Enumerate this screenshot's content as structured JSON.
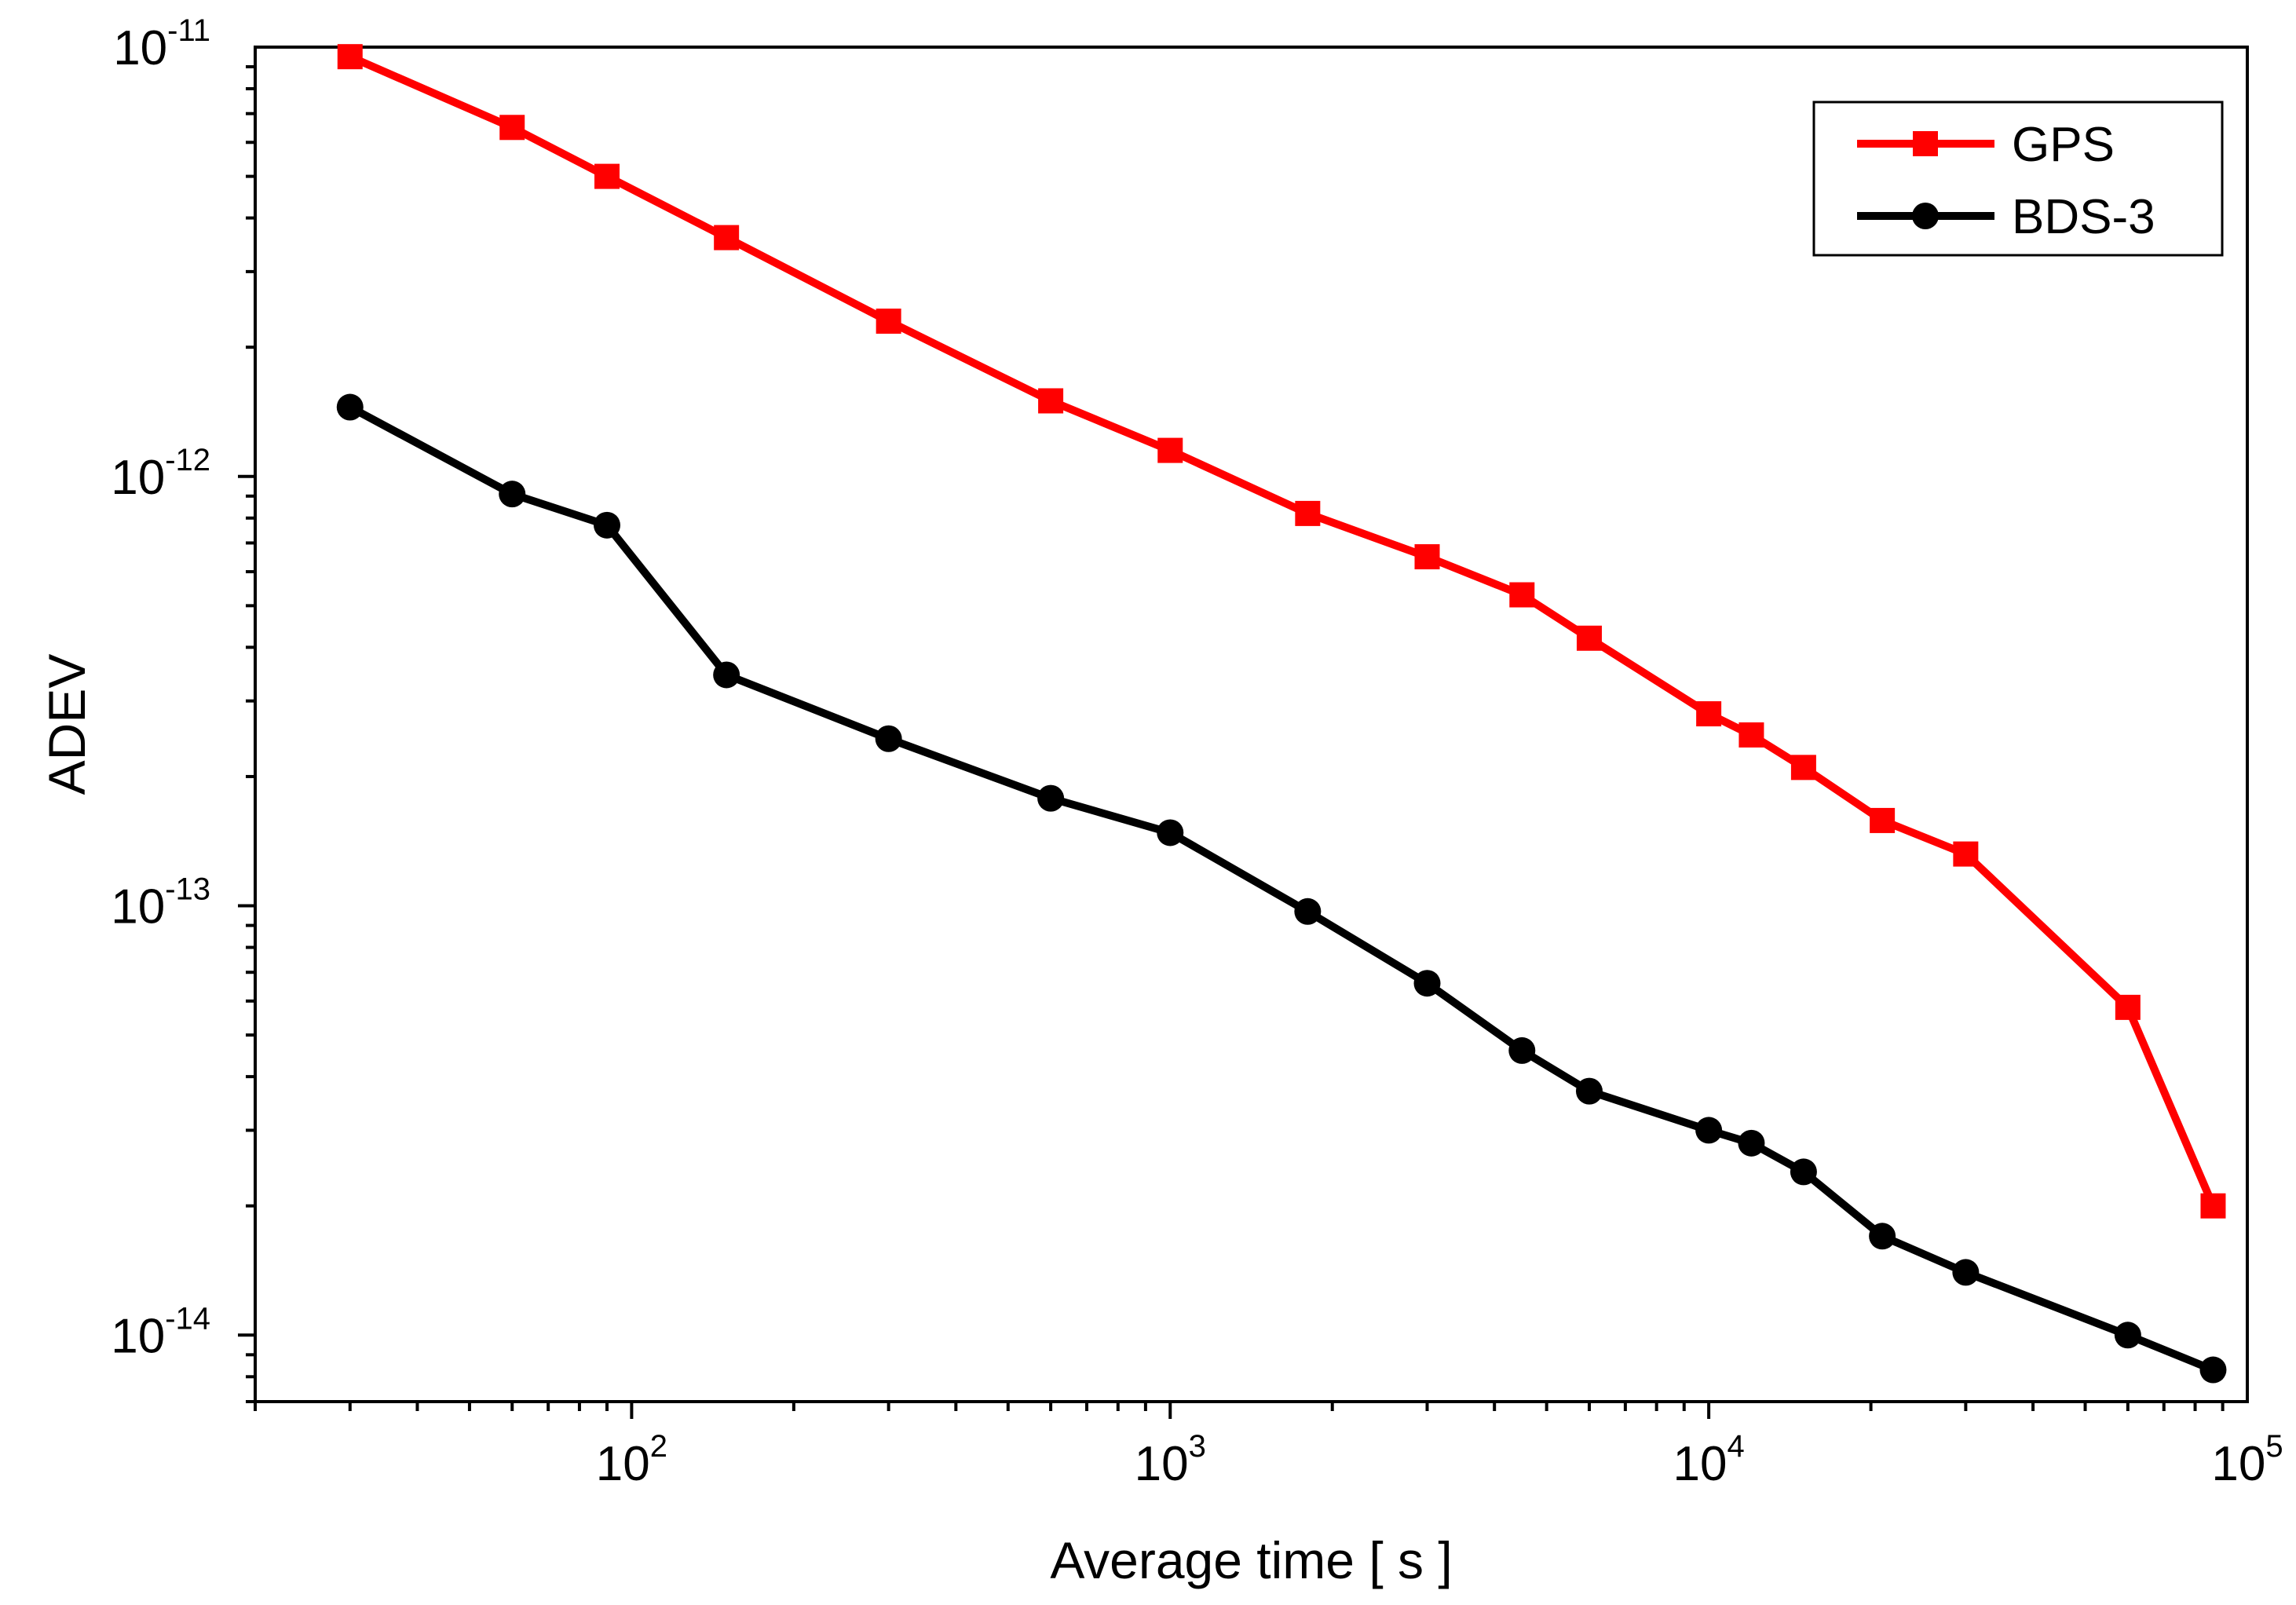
{
  "chart_data": {
    "type": "line",
    "title": "",
    "xlabel": "Average time [ s ]",
    "ylabel": "ADEV",
    "xscale": "log",
    "yscale": "log",
    "xlim": [
      20,
      100000
    ],
    "ylim": [
      7e-15,
      1e-11
    ],
    "grid": false,
    "legend_position": "top-right",
    "x_ticks": [
      {
        "base": "10",
        "exp": "2",
        "value": 100
      },
      {
        "base": "10",
        "exp": "3",
        "value": 1000
      },
      {
        "base": "10",
        "exp": "4",
        "value": 10000
      },
      {
        "base": "10",
        "exp": "5",
        "value": 100000
      }
    ],
    "y_ticks": [
      {
        "base": "10",
        "exp": "-11",
        "value": 1e-11
      },
      {
        "base": "10",
        "exp": "-12",
        "value": 1e-12
      },
      {
        "base": "10",
        "exp": "-13",
        "value": 1e-13
      },
      {
        "base": "10",
        "exp": "-14",
        "value": 1e-14
      }
    ],
    "x": [
      30,
      60,
      90,
      150,
      300,
      600,
      1000,
      1800,
      3000,
      4500,
      6000,
      10000,
      12000,
      15000,
      21000,
      30000,
      60000,
      86400
    ],
    "series": [
      {
        "name": "GPS",
        "color": "#ff0000",
        "marker": "square",
        "values": [
          9.5e-12,
          6.5e-12,
          5e-12,
          3.6e-12,
          2.3e-12,
          1.5e-12,
          1.15e-12,
          8.2e-13,
          6.5e-13,
          5.3e-13,
          4.2e-13,
          2.8e-13,
          2.5e-13,
          2.1e-13,
          1.58e-13,
          1.32e-13,
          5.8e-14,
          2e-14
        ]
      },
      {
        "name": "BDS-3",
        "color": "#000000",
        "marker": "circle",
        "values": [
          1.45e-12,
          9.1e-13,
          7.7e-13,
          3.45e-13,
          2.45e-13,
          1.78e-13,
          1.48e-13,
          9.7e-14,
          6.6e-14,
          4.6e-14,
          3.7e-14,
          3e-14,
          2.8e-14,
          2.4e-14,
          1.7e-14,
          1.4e-14,
          1e-14,
          8.3e-15
        ]
      }
    ]
  }
}
